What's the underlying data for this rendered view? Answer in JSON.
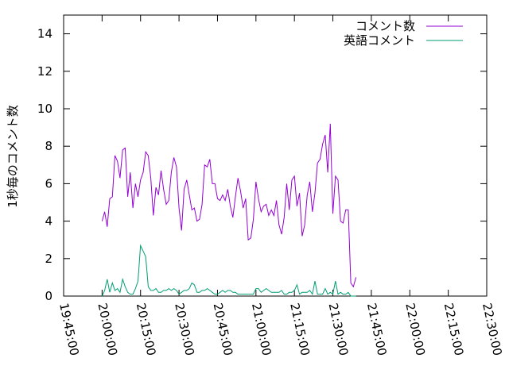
{
  "chart_data": {
    "type": "line",
    "ylabel": "1秒毎のコメント数",
    "xlabel": "",
    "ylim": [
      0,
      15
    ],
    "yticks": [
      0,
      2,
      4,
      6,
      8,
      10,
      12,
      14
    ],
    "xlim": [
      "19:45:00",
      "22:30:00"
    ],
    "xticks": [
      "19:45:00",
      "20:00:00",
      "20:15:00",
      "20:30:00",
      "20:45:00",
      "21:00:00",
      "21:15:00",
      "21:30:00",
      "21:45:00",
      "22:00:00",
      "22:15:00",
      "22:30:00"
    ],
    "legend_position": "top-right",
    "grid": false,
    "series": [
      {
        "name": "コメント数",
        "color": "#9400d3",
        "points": [
          [
            "20:00:00",
            4.0
          ],
          [
            "20:01:00",
            4.5
          ],
          [
            "20:02:00",
            3.7
          ],
          [
            "20:03:00",
            5.2
          ],
          [
            "20:04:00",
            5.3
          ],
          [
            "20:05:00",
            7.5
          ],
          [
            "20:06:00",
            7.2
          ],
          [
            "20:07:00",
            6.3
          ],
          [
            "20:08:00",
            7.8
          ],
          [
            "20:09:00",
            7.9
          ],
          [
            "20:10:00",
            5.3
          ],
          [
            "20:11:00",
            6.6
          ],
          [
            "20:12:00",
            4.7
          ],
          [
            "20:13:00",
            6.0
          ],
          [
            "20:14:00",
            5.3
          ],
          [
            "20:15:00",
            6.2
          ],
          [
            "20:16:00",
            6.6
          ],
          [
            "20:17:00",
            7.7
          ],
          [
            "20:18:00",
            7.5
          ],
          [
            "20:19:00",
            6.3
          ],
          [
            "20:20:00",
            4.3
          ],
          [
            "20:21:00",
            5.8
          ],
          [
            "20:22:00",
            5.4
          ],
          [
            "20:23:00",
            6.7
          ],
          [
            "20:24:00",
            5.7
          ],
          [
            "20:25:00",
            4.9
          ],
          [
            "20:26:00",
            5.1
          ],
          [
            "20:27:00",
            6.6
          ],
          [
            "20:28:00",
            7.4
          ],
          [
            "20:29:00",
            6.9
          ],
          [
            "20:30:00",
            4.7
          ],
          [
            "20:31:00",
            3.5
          ],
          [
            "20:32:00",
            5.7
          ],
          [
            "20:33:00",
            6.2
          ],
          [
            "20:34:00",
            5.4
          ],
          [
            "20:35:00",
            4.6
          ],
          [
            "20:36:00",
            4.7
          ],
          [
            "20:37:00",
            4.0
          ],
          [
            "20:38:00",
            4.1
          ],
          [
            "20:39:00",
            4.9
          ],
          [
            "20:40:00",
            7.0
          ],
          [
            "20:41:00",
            6.9
          ],
          [
            "20:42:00",
            7.3
          ],
          [
            "20:43:00",
            6.0
          ],
          [
            "20:44:00",
            6.0
          ],
          [
            "20:45:00",
            5.2
          ],
          [
            "20:46:00",
            5.1
          ],
          [
            "20:47:00",
            5.4
          ],
          [
            "20:48:00",
            5.1
          ],
          [
            "20:49:00",
            5.7
          ],
          [
            "20:50:00",
            4.8
          ],
          [
            "20:51:00",
            4.2
          ],
          [
            "20:52:00",
            5.3
          ],
          [
            "20:53:00",
            6.3
          ],
          [
            "20:54:00",
            5.6
          ],
          [
            "20:55:00",
            4.7
          ],
          [
            "20:56:00",
            5.2
          ],
          [
            "20:57:00",
            3.0
          ],
          [
            "20:58:00",
            3.1
          ],
          [
            "20:59:00",
            4.1
          ],
          [
            "21:00:00",
            6.1
          ],
          [
            "21:01:00",
            5.2
          ],
          [
            "21:02:00",
            4.5
          ],
          [
            "21:03:00",
            4.8
          ],
          [
            "21:04:00",
            4.9
          ],
          [
            "21:05:00",
            4.3
          ],
          [
            "21:06:00",
            4.6
          ],
          [
            "21:07:00",
            4.3
          ],
          [
            "21:08:00",
            5.1
          ],
          [
            "21:09:00",
            3.8
          ],
          [
            "21:10:00",
            3.3
          ],
          [
            "21:11:00",
            4.2
          ],
          [
            "21:12:00",
            6.0
          ],
          [
            "21:13:00",
            4.6
          ],
          [
            "21:14:00",
            6.2
          ],
          [
            "21:15:00",
            6.4
          ],
          [
            "21:16:00",
            4.8
          ],
          [
            "21:17:00",
            5.5
          ],
          [
            "21:18:00",
            3.2
          ],
          [
            "21:19:00",
            3.8
          ],
          [
            "21:20:00",
            5.4
          ],
          [
            "21:21:00",
            6.1
          ],
          [
            "21:22:00",
            4.5
          ],
          [
            "21:23:00",
            5.5
          ],
          [
            "21:24:00",
            7.1
          ],
          [
            "21:25:00",
            7.3
          ],
          [
            "21:26:00",
            8.1
          ],
          [
            "21:27:00",
            8.6
          ],
          [
            "21:28:00",
            6.6
          ],
          [
            "21:29:00",
            9.2
          ],
          [
            "21:30:00",
            4.4
          ],
          [
            "21:31:00",
            6.4
          ],
          [
            "21:32:00",
            6.2
          ],
          [
            "21:33:00",
            4.0
          ],
          [
            "21:34:00",
            3.9
          ],
          [
            "21:35:00",
            4.6
          ],
          [
            "21:36:00",
            4.6
          ],
          [
            "21:37:00",
            0.7
          ],
          [
            "21:38:00",
            0.5
          ],
          [
            "21:39:00",
            1.0
          ]
        ]
      },
      {
        "name": "英語コメント",
        "color": "#009e73",
        "points": [
          [
            "20:00:00",
            0.0
          ],
          [
            "20:01:00",
            0.3
          ],
          [
            "20:02:00",
            0.9
          ],
          [
            "20:03:00",
            0.2
          ],
          [
            "20:04:00",
            0.7
          ],
          [
            "20:05:00",
            0.3
          ],
          [
            "20:06:00",
            0.4
          ],
          [
            "20:07:00",
            0.2
          ],
          [
            "20:08:00",
            0.9
          ],
          [
            "20:09:00",
            0.5
          ],
          [
            "20:10:00",
            0.2
          ],
          [
            "20:11:00",
            0.1
          ],
          [
            "20:12:00",
            0.1
          ],
          [
            "20:13:00",
            0.4
          ],
          [
            "20:14:00",
            0.8
          ],
          [
            "20:15:00",
            2.7
          ],
          [
            "20:16:00",
            2.4
          ],
          [
            "20:17:00",
            2.1
          ],
          [
            "20:18:00",
            0.5
          ],
          [
            "20:19:00",
            0.3
          ],
          [
            "20:20:00",
            0.3
          ],
          [
            "20:21:00",
            0.4
          ],
          [
            "20:22:00",
            0.2
          ],
          [
            "20:23:00",
            0.2
          ],
          [
            "20:24:00",
            0.3
          ],
          [
            "20:25:00",
            0.3
          ],
          [
            "20:26:00",
            0.4
          ],
          [
            "20:27:00",
            0.3
          ],
          [
            "20:28:00",
            0.4
          ],
          [
            "20:29:00",
            0.3
          ],
          [
            "20:30:00",
            0.1
          ],
          [
            "20:31:00",
            0.2
          ],
          [
            "20:32:00",
            0.3
          ],
          [
            "20:33:00",
            0.3
          ],
          [
            "20:34:00",
            0.4
          ],
          [
            "20:35:00",
            0.7
          ],
          [
            "20:36:00",
            0.6
          ],
          [
            "20:37:00",
            0.2
          ],
          [
            "20:38:00",
            0.2
          ],
          [
            "20:39:00",
            0.3
          ],
          [
            "20:40:00",
            0.3
          ],
          [
            "20:41:00",
            0.4
          ],
          [
            "20:42:00",
            0.3
          ],
          [
            "20:43:00",
            0.2
          ],
          [
            "20:44:00",
            0.1
          ],
          [
            "20:45:00",
            0.1
          ],
          [
            "20:46:00",
            0.2
          ],
          [
            "20:47:00",
            0.3
          ],
          [
            "20:48:00",
            0.2
          ],
          [
            "20:49:00",
            0.3
          ],
          [
            "20:50:00",
            0.3
          ],
          [
            "20:51:00",
            0.2
          ],
          [
            "20:52:00",
            0.2
          ],
          [
            "20:53:00",
            0.1
          ],
          [
            "20:54:00",
            0.1
          ],
          [
            "20:55:00",
            0.1
          ],
          [
            "20:56:00",
            0.1
          ],
          [
            "20:57:00",
            0.1
          ],
          [
            "20:58:00",
            0.1
          ],
          [
            "20:59:00",
            0.1
          ],
          [
            "21:00:00",
            0.4
          ],
          [
            "21:01:00",
            0.4
          ],
          [
            "21:02:00",
            0.2
          ],
          [
            "21:03:00",
            0.3
          ],
          [
            "21:04:00",
            0.4
          ],
          [
            "21:05:00",
            0.3
          ],
          [
            "21:06:00",
            0.2
          ],
          [
            "21:07:00",
            0.2
          ],
          [
            "21:08:00",
            0.2
          ],
          [
            "21:09:00",
            0.2
          ],
          [
            "21:10:00",
            0.3
          ],
          [
            "21:11:00",
            0.1
          ],
          [
            "21:12:00",
            0.1
          ],
          [
            "21:13:00",
            0.2
          ],
          [
            "21:14:00",
            0.2
          ],
          [
            "21:15:00",
            0.3
          ],
          [
            "21:16:00",
            0.6
          ],
          [
            "21:17:00",
            0.1
          ],
          [
            "21:18:00",
            0.2
          ],
          [
            "21:19:00",
            0.2
          ],
          [
            "21:20:00",
            0.2
          ],
          [
            "21:21:00",
            0.3
          ],
          [
            "21:22:00",
            0.1
          ],
          [
            "21:23:00",
            0.8
          ],
          [
            "21:24:00",
            0.1
          ],
          [
            "21:25:00",
            0.1
          ],
          [
            "21:26:00",
            0.1
          ],
          [
            "21:27:00",
            0.4
          ],
          [
            "21:28:00",
            0.1
          ],
          [
            "21:29:00",
            0.2
          ],
          [
            "21:30:00",
            0.1
          ],
          [
            "21:31:00",
            0.8
          ],
          [
            "21:32:00",
            0.1
          ],
          [
            "21:33:00",
            0.2
          ],
          [
            "21:34:00",
            0.1
          ],
          [
            "21:35:00",
            0.1
          ],
          [
            "21:36:00",
            0.2
          ],
          [
            "21:37:00",
            0.0
          ],
          [
            "21:38:00",
            0.0
          ],
          [
            "21:39:00",
            0.0
          ]
        ]
      }
    ]
  }
}
